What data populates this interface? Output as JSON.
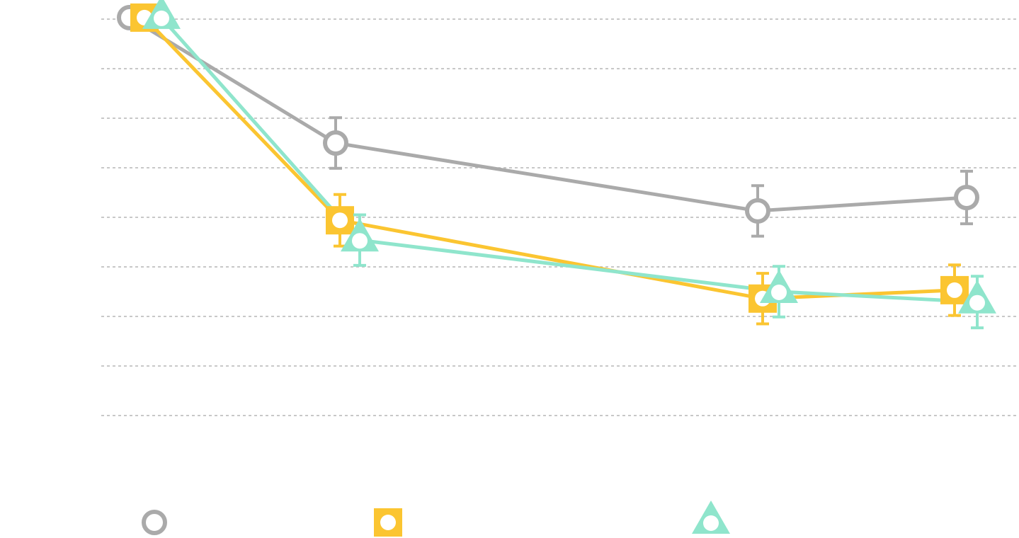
{
  "chart_data": {
    "type": "line",
    "xlim": [
      0,
      1296
    ],
    "ylim": [
      0,
      8
    ],
    "yticks": [
      0,
      1,
      2,
      3,
      4,
      5,
      6,
      7,
      8
    ],
    "grid": true,
    "series": [
      {
        "color": "#aaaaaa",
        "marker": "circle",
        "x": [
          40,
          331,
          927,
          1222
        ],
        "values": [
          8.03,
          5.5,
          4.13,
          4.4
        ],
        "errors": [
          0,
          0.51,
          0.51,
          0.53
        ]
      },
      {
        "color": "#fbc531",
        "marker": "square",
        "x": [
          61,
          337,
          934,
          1205
        ],
        "values": [
          8.03,
          3.94,
          2.36,
          2.53
        ],
        "errors": [
          0,
          0.52,
          0.51,
          0.51
        ]
      },
      {
        "color": "#8fe5cc",
        "marker": "triangle",
        "x": [
          85,
          365,
          957,
          1237
        ],
        "values": [
          8.03,
          3.54,
          2.5,
          2.29
        ],
        "errors": [
          0,
          0.51,
          0.51,
          0.52
        ]
      }
    ]
  }
}
